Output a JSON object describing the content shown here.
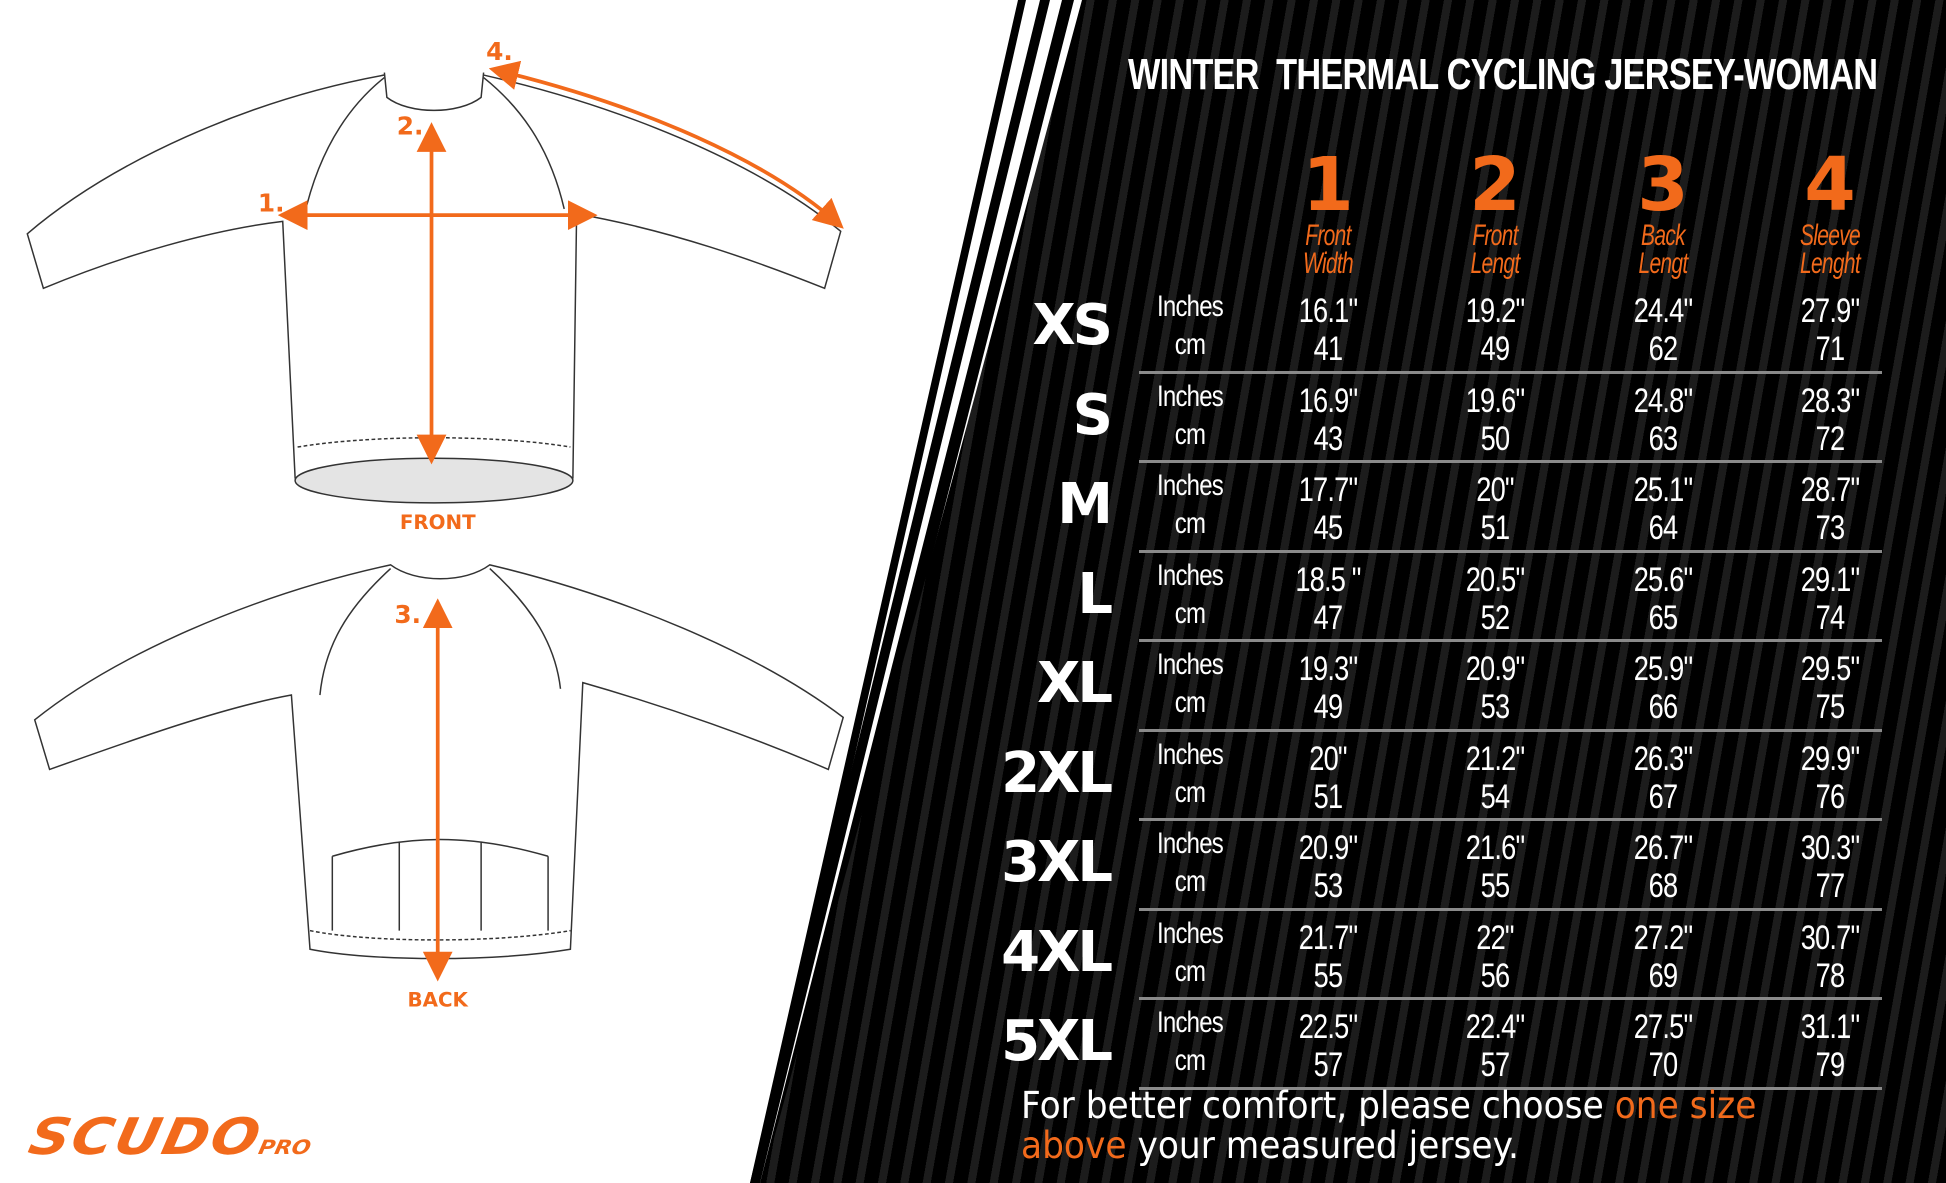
{
  "title": "WINTER  THERMAL CYCLING JERSEY-WOMAN",
  "accent_color": "#f26a1b",
  "illustration": {
    "front_label": "FRONT",
    "back_label": "BACK",
    "markers": [
      "1.",
      "2.",
      "3.",
      "4."
    ]
  },
  "columns": [
    {
      "number": "1",
      "label": "Front Width"
    },
    {
      "number": "2",
      "label": "Front Lengt"
    },
    {
      "number": "3",
      "label": "Back Lengt"
    },
    {
      "number": "4",
      "label": "Sleeve Lenght"
    }
  ],
  "units": {
    "inches": "Inches",
    "cm": "cm"
  },
  "sizes": [
    {
      "size": "XS",
      "inches": [
        "16.1\"",
        "19.2\"",
        "24.4\"",
        "27.9\""
      ],
      "cm": [
        "41",
        "49",
        "62",
        "71"
      ]
    },
    {
      "size": "S",
      "inches": [
        "16.9\"",
        "19.6\"",
        "24.8\"",
        "28.3\""
      ],
      "cm": [
        "43",
        "50",
        "63",
        "72"
      ]
    },
    {
      "size": "M",
      "inches": [
        "17.7\"",
        "20\"",
        "25.1\"",
        "28.7\""
      ],
      "cm": [
        "45",
        "51",
        "64",
        "73"
      ]
    },
    {
      "size": "L",
      "inches": [
        "18.5 \"",
        "20.5\"",
        "25.6\"",
        "29.1\""
      ],
      "cm": [
        "47",
        "52",
        "65",
        "74"
      ]
    },
    {
      "size": "XL",
      "inches": [
        "19.3\"",
        "20.9\"",
        "25.9\"",
        "29.5\""
      ],
      "cm": [
        "49",
        "53",
        "66",
        "75"
      ]
    },
    {
      "size": "2XL",
      "inches": [
        "20\"",
        "21.2\"",
        "26.3\"",
        "29.9\""
      ],
      "cm": [
        "51",
        "54",
        "67",
        "76"
      ]
    },
    {
      "size": "3XL",
      "inches": [
        "20.9\"",
        "21.6\"",
        "26.7\"",
        "30.3\""
      ],
      "cm": [
        "53",
        "55",
        "68",
        "77"
      ]
    },
    {
      "size": "4XL",
      "inches": [
        "21.7\"",
        "22\"",
        "27.2\"",
        "30.7\""
      ],
      "cm": [
        "55",
        "56",
        "69",
        "78"
      ]
    },
    {
      "size": "5XL",
      "inches": [
        "22.5\"",
        "22.4\"",
        "27.5\"",
        "31.1\""
      ],
      "cm": [
        "57",
        "57",
        "70",
        "79"
      ]
    }
  ],
  "note": {
    "text_before": "For better comfort, please choose ",
    "highlight": "one size above",
    "text_after": " your measured jersey."
  },
  "logo": {
    "main": "SCUDO",
    "sub": "PRO"
  }
}
